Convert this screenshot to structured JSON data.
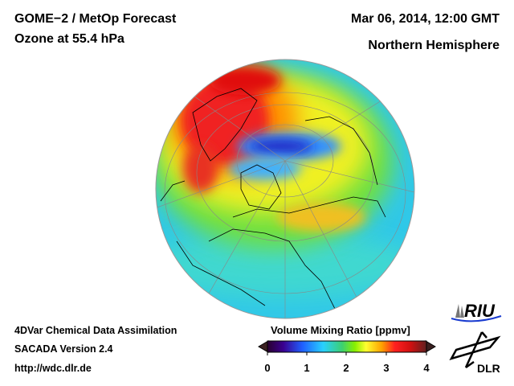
{
  "header": {
    "title_line1": "GOME−2 / MetOp Forecast",
    "title_line2": "Ozone at 55.4 hPa",
    "datetime": "Mar 06, 2014, 12:00 GMT",
    "region": "Northern Hemisphere"
  },
  "footer": {
    "line1": "4DVar Chemical Data Assimilation",
    "line2": "SACADA Version 2.4",
    "url": "http://wdc.dlr.de"
  },
  "colorbar": {
    "title": "Volume Mixing Ratio [ppmv]",
    "ticks": [
      "0",
      "1",
      "2",
      "3",
      "4"
    ],
    "range": [
      0,
      4
    ],
    "colors": [
      "#2a0030",
      "#3a0090",
      "#1f5fff",
      "#28d0ff",
      "#3cd070",
      "#88f000",
      "#ffff30",
      "#ffa000",
      "#ff2020",
      "#d01010",
      "#602020"
    ]
  },
  "logos": {
    "riu": "RIU",
    "dlr": "DLR"
  }
}
